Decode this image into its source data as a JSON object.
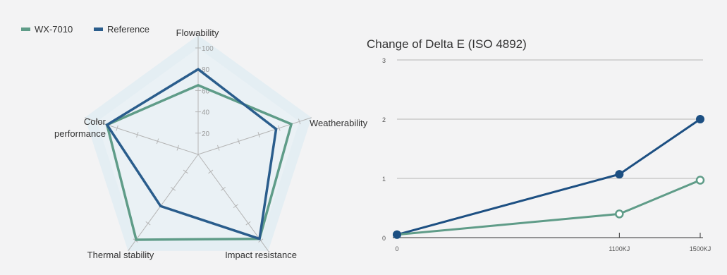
{
  "colors": {
    "background": "#f3f3f4",
    "radar_bg_outer": "#e4eef3",
    "radar_bg_inner": "#eaf1f5",
    "series_wx": "#5f9c88",
    "series_ref": "#2a5d8c",
    "line_ref": "#1c4f82",
    "grid": "#b5b5b5",
    "axis": "#999999"
  },
  "chart_data": [
    {
      "type": "radar",
      "axes": [
        "Flowability",
        "Weatherability",
        "Impact resistance",
        "Thermal stability",
        "Color performance"
      ],
      "axis_labels": [
        [
          "Flowability"
        ],
        [
          "Weatherability"
        ],
        [
          "Impact resistance"
        ],
        [
          "Thermal stability"
        ],
        [
          "Color",
          "performance"
        ]
      ],
      "ticks": [
        20,
        40,
        60,
        80,
        100
      ],
      "tick_labels": [
        "20",
        "40",
        "60",
        "80",
        "100"
      ],
      "range": [
        0,
        100
      ],
      "legend_position": "top-left",
      "series": [
        {
          "name": "WX-7010",
          "color": "#5f9c88",
          "values": [
            65,
            92,
            98,
            99,
            90
          ]
        },
        {
          "name": "Reference",
          "color": "#2a5d8c",
          "values": [
            80,
            77,
            98,
            60,
            90
          ]
        }
      ]
    },
    {
      "type": "line",
      "title": "Change of Delta E  (ISO 4892)",
      "ylabel": "",
      "xlabel": "",
      "categories": [
        "0",
        "1100KJ",
        "1500KJ"
      ],
      "x": [
        0,
        1100,
        1500
      ],
      "ylim": [
        0,
        3
      ],
      "y_ticks": [
        0,
        1,
        2,
        3
      ],
      "y_tick_labels": [
        "0",
        "1",
        "2",
        "3"
      ],
      "grid": true,
      "series": [
        {
          "name": "Reference",
          "color": "#1c4f82",
          "marker": "filled",
          "values": [
            0.05,
            1.07,
            2.0
          ]
        },
        {
          "name": "WX-7010",
          "color": "#5f9c88",
          "marker": "hollow",
          "values": [
            0.05,
            0.4,
            0.97
          ]
        }
      ]
    }
  ]
}
